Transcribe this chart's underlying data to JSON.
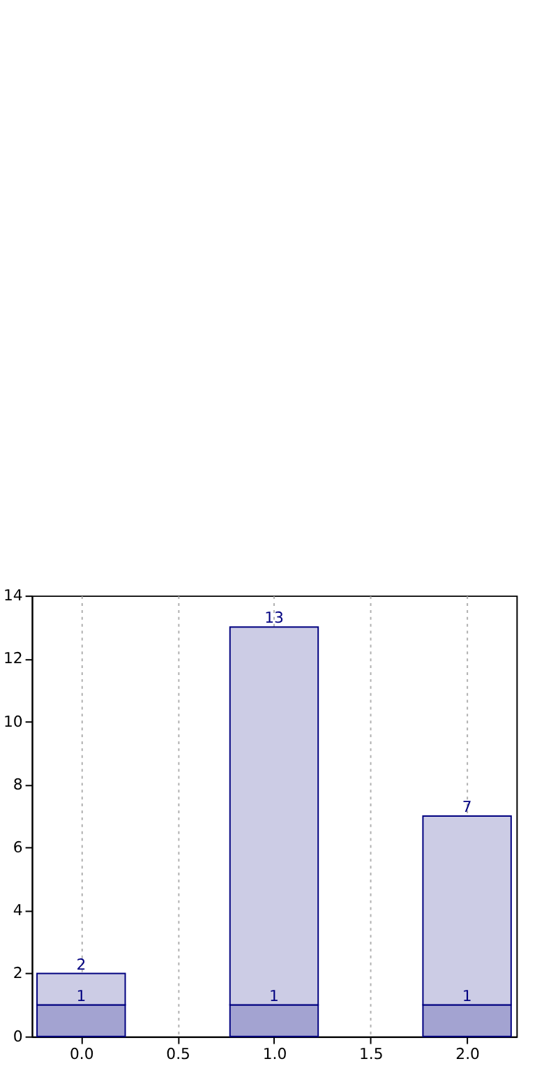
{
  "chart_data": {
    "type": "bar",
    "x": [
      0,
      1,
      2
    ],
    "stacked": true,
    "series": [
      {
        "color": "#a3a3d1",
        "values": [
          1,
          1,
          1
        ],
        "value_labels": [
          "1",
          "1",
          "1"
        ]
      },
      {
        "color": "#ccccE5",
        "values": [
          1,
          12,
          6
        ]
      }
    ],
    "totals": [
      "2",
      "13",
      "7"
    ],
    "xlim": [
      -0.22,
      2.22
    ],
    "xticks": [
      {
        "value": 0,
        "label": "0.0"
      },
      {
        "value": 0.5,
        "label": "0.5"
      },
      {
        "value": 1,
        "label": "1.0"
      },
      {
        "value": 1.5,
        "label": "1.5"
      },
      {
        "value": 2,
        "label": "2.0"
      }
    ],
    "ylim": [
      0,
      14
    ],
    "yticks": [
      0,
      2,
      4,
      6,
      8,
      10,
      12,
      14
    ],
    "grid": "x"
  }
}
